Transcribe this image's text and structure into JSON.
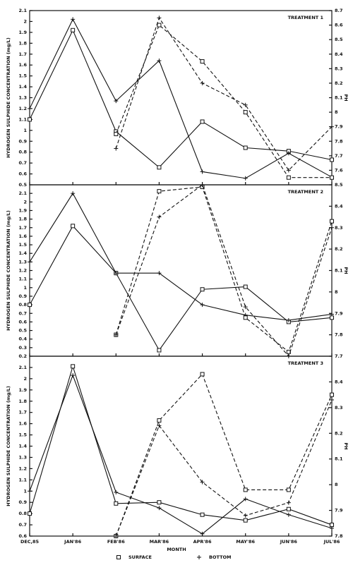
{
  "chart_data": [
    {
      "type": "line",
      "title": "TREATMENT 1",
      "y_label": "HYDROGEN SULPHIDE CONCENTRATION (mg/L)",
      "y2_label": "PH",
      "ylim": [
        0.5,
        2.1
      ],
      "yticks": [
        0.5,
        0.6,
        0.7,
        0.8,
        0.9,
        1,
        1.1,
        1.2,
        1.3,
        1.4,
        1.5,
        1.6,
        1.7,
        1.8,
        1.9,
        2,
        2.1
      ],
      "y2lim": [
        7.5,
        8.7
      ],
      "y2ticks": [
        7.6,
        7.7,
        7.8,
        7.9,
        8,
        8.1,
        8.2,
        8.3,
        8.4,
        8.5,
        8.6,
        8.7
      ],
      "series": [
        {
          "marker": "square",
          "linestyle": "solid",
          "color": "#111111",
          "values": [
            1.1,
            1.92,
            0.99,
            0.66,
            1.08,
            0.84,
            0.81,
            0.73
          ]
        },
        {
          "marker": "plus",
          "linestyle": "solid",
          "color": "#111111",
          "values": [
            1.2,
            2.02,
            1.27,
            1.64,
            0.62,
            0.56,
            0.79,
            0.57
          ]
        },
        {
          "marker": "square",
          "linestyle": "dashed",
          "color": "#111111",
          "axis": "y2",
          "values": [
            null,
            null,
            7.85,
            8.6,
            8.35,
            8.0,
            7.55,
            7.55
          ]
        },
        {
          "marker": "plus",
          "linestyle": "dashed",
          "color": "#111111",
          "axis": "y2",
          "values": [
            null,
            null,
            7.75,
            8.65,
            8.2,
            8.05,
            7.6,
            7.9
          ]
        }
      ]
    },
    {
      "type": "line",
      "title": "TREATMENT 2",
      "y_label": "HYDROGEN SULPHIDE CONCENTRATION (mg/L)",
      "y2_label": "PH",
      "ylim": [
        0.2,
        2.2
      ],
      "yticks": [
        0.2,
        0.3,
        0.4,
        0.5,
        0.6,
        0.7,
        0.8,
        0.9,
        1,
        1.1,
        1.2,
        1.3,
        1.4,
        1.5,
        1.6,
        1.7,
        1.8,
        1.9,
        2,
        2.1
      ],
      "y2lim": [
        7.7,
        8.5
      ],
      "y2ticks": [
        7.7,
        7.8,
        7.9,
        8,
        8.1,
        8.2,
        8.3,
        8.4,
        8.5
      ],
      "series": [
        {
          "marker": "square",
          "linestyle": "solid",
          "color": "#111111",
          "values": [
            0.8,
            1.72,
            1.17,
            0.27,
            0.98,
            1.01,
            0.6,
            0.65
          ]
        },
        {
          "marker": "plus",
          "linestyle": "solid",
          "color": "#111111",
          "values": [
            1.3,
            2.1,
            1.17,
            1.17,
            0.8,
            0.68,
            0.62,
            0.69
          ]
        },
        {
          "marker": "square",
          "linestyle": "dashed",
          "color": "#111111",
          "axis": "y2",
          "values": [
            null,
            null,
            7.8,
            8.47,
            8.49,
            7.88,
            7.72,
            8.33
          ]
        },
        {
          "marker": "plus",
          "linestyle": "dashed",
          "color": "#111111",
          "axis": "y2",
          "values": [
            null,
            null,
            7.8,
            8.35,
            8.5,
            7.93,
            7.7,
            8.3
          ]
        }
      ]
    },
    {
      "type": "line",
      "title": "TREATMENT 3",
      "y_label": "HYDROGEN SULPHIDE CONCENTRATION (mg/L)",
      "y2_label": "PH",
      "x_label": "MONTH",
      "legend": [
        "SURFACE",
        "BOTTOM"
      ],
      "categories": [
        "DEC,85",
        "JAN'86",
        "FEB'86",
        "MAR'86",
        "APR'86",
        "MAY'86",
        "JUN'86",
        "JUL'86"
      ],
      "ylim": [
        0.6,
        2.2
      ],
      "yticks": [
        0.6,
        0.7,
        0.8,
        0.9,
        1,
        1.1,
        1.2,
        1.3,
        1.4,
        1.5,
        1.6,
        1.7,
        1.8,
        1.9,
        2,
        2.1
      ],
      "y2lim": [
        7.8,
        8.5
      ],
      "y2ticks": [
        7.8,
        7.9,
        8,
        8.1,
        8.2,
        8.3,
        8.4
      ],
      "series": [
        {
          "marker": "square",
          "linestyle": "solid",
          "color": "#111111",
          "values": [
            0.8,
            2.11,
            0.89,
            0.9,
            0.79,
            0.74,
            0.84,
            0.7
          ]
        },
        {
          "marker": "plus",
          "linestyle": "solid",
          "color": "#111111",
          "values": [
            1.0,
            2.03,
            0.99,
            0.85,
            0.62,
            0.93,
            0.79,
            0.67
          ]
        },
        {
          "marker": "square",
          "linestyle": "dashed",
          "color": "#111111",
          "axis": "y2",
          "values": [
            null,
            null,
            7.8,
            8.25,
            8.43,
            7.98,
            7.98,
            8.35
          ]
        },
        {
          "marker": "plus",
          "linestyle": "dashed",
          "color": "#111111",
          "axis": "y2",
          "values": [
            null,
            null,
            7.8,
            8.23,
            8.01,
            7.88,
            7.93,
            8.33
          ]
        }
      ]
    }
  ]
}
